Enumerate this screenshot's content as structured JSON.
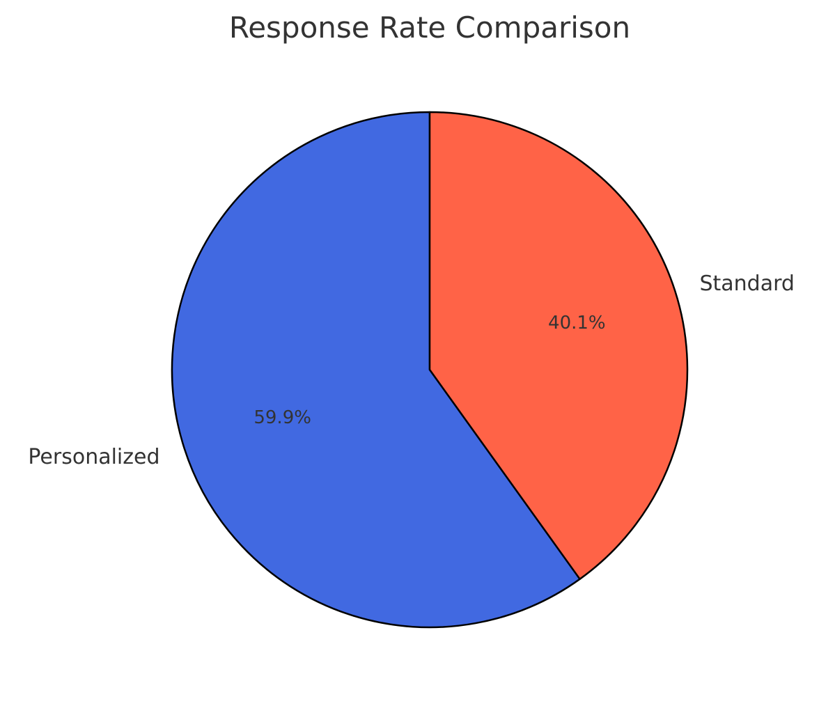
{
  "chart_data": {
    "type": "pie",
    "title": "Response Rate Comparison",
    "categories": [
      "Personalized",
      "Standard"
    ],
    "values": [
      59.9,
      40.1
    ],
    "value_labels": [
      "59.9%",
      "40.1%"
    ],
    "colors": [
      "#4169E1",
      "#FF6347"
    ],
    "start_angle_deg": 90,
    "direction": "counterclockwise",
    "edge_color": "#000000",
    "legend": "none"
  }
}
